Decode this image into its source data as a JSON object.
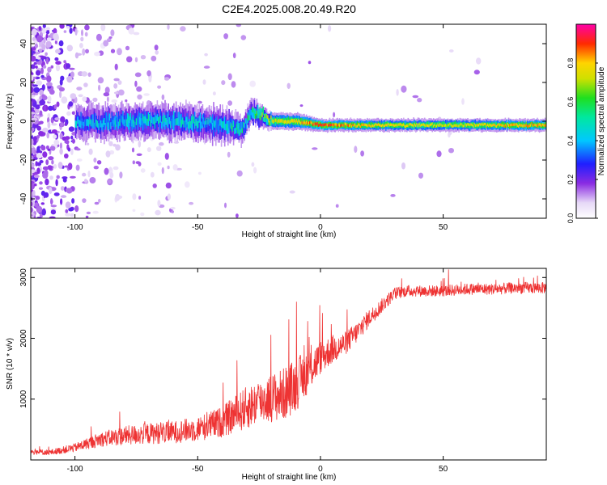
{
  "title": "C2E4.2025.008.20.49.R20",
  "chart_data": [
    {
      "type": "heatmap",
      "xlabel": "Height of straight line (km)",
      "ylabel": "Frequency (Hz)",
      "xlim": [
        -118,
        92
      ],
      "ylim": [
        -50,
        50
      ],
      "xticks": [
        -100,
        -50,
        0,
        50
      ],
      "yticks": [
        -40,
        -20,
        0,
        20,
        40
      ],
      "colorbar": {
        "label": "Normalized spectral amplitude",
        "range": [
          0,
          1
        ],
        "ticks": [
          "0.0",
          "0.2",
          "0.4",
          "0.6",
          "0.8"
        ],
        "colormap": "rainbow-white-purple-blue-cyan-green-yellow-red-magenta"
      },
      "ridge": [
        {
          "x": -100,
          "freq": -1,
          "amp": 0.4,
          "halfwidth": 4
        },
        {
          "x": -80,
          "freq": 0,
          "amp": 0.45,
          "halfwidth": 4
        },
        {
          "x": -60,
          "freq": 0,
          "amp": 0.45,
          "halfwidth": 4
        },
        {
          "x": -40,
          "freq": -2,
          "amp": 0.45,
          "halfwidth": 4
        },
        {
          "x": -32,
          "freq": -4,
          "amp": 0.5,
          "halfwidth": 3
        },
        {
          "x": -28,
          "freq": 5,
          "amp": 0.5,
          "halfwidth": 3
        },
        {
          "x": -20,
          "freq": 0,
          "amp": 0.75,
          "halfwidth": 2
        },
        {
          "x": -10,
          "freq": 0,
          "amp": 0.8,
          "halfwidth": 2
        },
        {
          "x": 0,
          "freq": -2,
          "amp": 0.9,
          "halfwidth": 1.5
        },
        {
          "x": 20,
          "freq": -2,
          "amp": 0.8,
          "halfwidth": 1.5
        },
        {
          "x": 50,
          "freq": -2,
          "amp": 0.75,
          "halfwidth": 1.5
        },
        {
          "x": 92,
          "freq": -2,
          "amp": 0.85,
          "halfwidth": 1.5
        }
      ]
    },
    {
      "type": "line",
      "xlabel": "Height of straight line (km)",
      "ylabel": "SNR (10 * v/v)",
      "xlim": [
        -118,
        92
      ],
      "ylim": [
        0,
        3150
      ],
      "xticks": [
        -100,
        -50,
        0,
        50
      ],
      "yticks": [
        1000,
        2000,
        3000
      ],
      "color": "#ee3333",
      "series": [
        {
          "x": [
            -118,
            -110,
            -100,
            -90,
            -80,
            -70,
            -60,
            -50,
            -40,
            -30,
            -25,
            -20,
            -15,
            -10,
            -8,
            -5,
            0,
            5,
            10,
            15,
            20,
            25,
            30,
            35,
            40,
            50,
            60,
            70,
            80,
            92
          ],
          "y": [
            120,
            110,
            180,
            300,
            350,
            380,
            400,
            450,
            550,
            750,
            850,
            900,
            950,
            1100,
            1200,
            1350,
            1600,
            1750,
            1850,
            2050,
            2300,
            2500,
            2700,
            2750,
            2750,
            2750,
            2780,
            2780,
            2800,
            2800
          ],
          "noise": [
            60,
            60,
            90,
            150,
            200,
            220,
            230,
            260,
            320,
            450,
            450,
            500,
            550,
            550,
            520,
            450,
            350,
            300,
            250,
            220,
            180,
            150,
            130,
            120,
            120,
            120,
            120,
            120,
            120,
            120
          ]
        }
      ]
    }
  ]
}
